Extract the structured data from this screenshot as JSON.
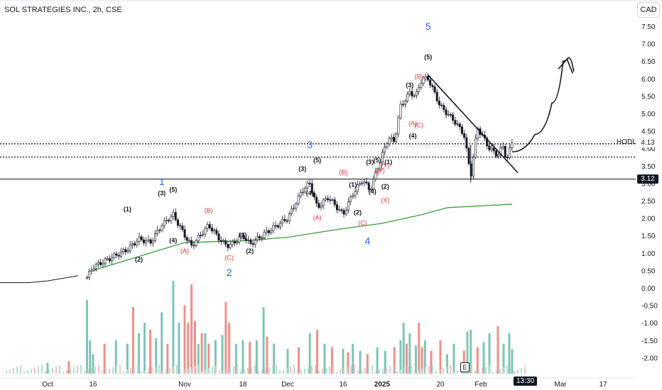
{
  "header": {
    "symbol": "SOL STRATEGIES INC., 2h, CSE",
    "currency_button": "CAD"
  },
  "overlay": {
    "hodl_label": "HODL",
    "hodl_price": "4.13",
    "support_price": "3.12",
    "earnings_badge": "E",
    "time_tag": "13:30"
  },
  "y_axis": {
    "ticks": [
      "7.50",
      "7.00",
      "6.50",
      "6.00",
      "5.50",
      "5.00",
      "4.50",
      "4.00",
      "3.50",
      "3.00",
      "2.50",
      "2.00",
      "1.50",
      "1.00",
      "0.50",
      "0.00",
      "-0.50",
      "-1.00",
      "-1.50",
      "-2.00"
    ]
  },
  "x_axis": {
    "ticks": [
      "Oct",
      "16",
      "Nov",
      "18",
      "Dec",
      "16",
      "2025",
      "20",
      "Feb",
      "Mar",
      "17"
    ]
  },
  "colors": {
    "up_volume": "#7fc4b6",
    "down_volume": "#ef8f8a",
    "ma_line": "#3c9c3c",
    "wave_main": "#2962ff",
    "wave_corr": "#e0363a",
    "candle": "#131722"
  },
  "chart_data": {
    "type": "candlestick",
    "title": "SOL STRATEGIES INC., 2h, CSE",
    "currency": "CAD",
    "ylim": [
      -2.25,
      7.75
    ],
    "price_path": [
      [
        "Oct 1",
        -0.15
      ],
      [
        "Oct 8",
        -0.1
      ],
      [
        "Oct 14",
        0.3
      ],
      [
        "Oct 16",
        0.6
      ],
      [
        "Oct 22",
        1.1
      ],
      [
        "Oct 24",
        1.4
      ],
      [
        "Oct 26",
        1.3
      ],
      [
        "Oct 28",
        1.8
      ],
      [
        "Oct 30",
        2.1
      ],
      [
        "Nov 1",
        1.5
      ],
      [
        "Nov 3",
        1.2
      ],
      [
        "Nov 8",
        1.8
      ],
      [
        "Nov 12",
        1.3
      ],
      [
        "Nov 14",
        1.2
      ],
      [
        "Nov 18",
        1.5
      ],
      [
        "Nov 20",
        1.25
      ],
      [
        "Nov 25",
        1.6
      ],
      [
        "Dec 1",
        2.0
      ],
      [
        "Dec 5",
        2.8
      ],
      [
        "Dec 7",
        3.0
      ],
      [
        "Dec 9",
        2.3
      ],
      [
        "Dec 12",
        2.6
      ],
      [
        "Dec 16",
        2.1
      ],
      [
        "Dec 20",
        2.7
      ],
      [
        "Dec 24",
        3.1
      ],
      [
        "Dec 27",
        2.8
      ],
      [
        "Dec 30",
        3.4
      ],
      [
        "Jan 3",
        4.3
      ],
      [
        "Jan 5",
        4.2
      ],
      [
        "Jan 7",
        5.2
      ],
      [
        "Jan 10",
        5.6
      ],
      [
        "Jan 12",
        5.5
      ],
      [
        "Jan 14",
        6.0
      ],
      [
        "Jan 16",
        6.0
      ],
      [
        "Jan 20",
        5.2
      ],
      [
        "Jan 24",
        4.8
      ],
      [
        "Jan 27",
        4.4
      ],
      [
        "Jan 29",
        3.2
      ],
      [
        "Jan 31",
        4.6
      ],
      [
        "Feb 4",
        4.0
      ],
      [
        "Feb 7",
        3.8
      ],
      [
        "Feb 9",
        4.1
      ],
      [
        "Feb 10",
        3.6
      ],
      [
        "Feb 12",
        4.2
      ]
    ],
    "moving_average": [
      [
        "Oct 16",
        0.5
      ],
      [
        "Oct 26",
        1.0
      ],
      [
        "Nov 1",
        1.3
      ],
      [
        "Nov 18",
        1.35
      ],
      [
        "Dec 1",
        1.45
      ],
      [
        "Dec 16",
        1.7
      ],
      [
        "Jan 1",
        1.85
      ],
      [
        "Jan 14",
        2.1
      ],
      [
        "Jan 22",
        2.3
      ],
      [
        "Feb 1",
        2.35
      ],
      [
        "Feb 12",
        2.4
      ]
    ],
    "horizontal_levels": [
      {
        "price": 3.12,
        "style": "solid"
      },
      {
        "price": 3.75,
        "style": "dotted"
      },
      {
        "price": 4.13,
        "style": "dotted",
        "label": "HODL"
      }
    ],
    "trendline": [
      [
        "Jan 16",
        6.1
      ],
      [
        "Feb 14",
        3.3
      ]
    ],
    "projection_path": [
      [
        "Feb 12",
        3.9
      ],
      [
        "Feb 20",
        4.4
      ],
      [
        "Feb 26",
        5.3
      ],
      [
        "Mar 2",
        6.5
      ],
      [
        "Mar 4",
        6.6
      ],
      [
        "Mar 6",
        6.2
      ]
    ],
    "wave_labels_main": [
      {
        "text": "1",
        "x": "Oct 28",
        "y": 2.95
      },
      {
        "text": "2",
        "x": "Nov 14",
        "y": 0.35
      },
      {
        "text": "3",
        "x": "Dec 7",
        "y": 4.0
      },
      {
        "text": "4",
        "x": "Dec 26",
        "y": 1.25
      },
      {
        "text": "5",
        "x": "Jan 16",
        "y": 7.4
      }
    ],
    "wave_labels_minor": [
      {
        "text": "(1)",
        "x": "Oct 22",
        "y": 2.2
      },
      {
        "text": "(2)",
        "x": "Oct 24",
        "y": 0.75
      },
      {
        "text": "(3)",
        "x": "Oct 28",
        "y": 2.65
      },
      {
        "text": "(4)",
        "x": "Oct 30",
        "y": 1.3
      },
      {
        "text": "(5)",
        "x": "Oct 30",
        "y": 2.75
      },
      {
        "text": "(1)",
        "x": "Nov 18",
        "y": 1.45
      },
      {
        "text": "(2)",
        "x": "Nov 20",
        "y": 1.0
      },
      {
        "text": "(3)",
        "x": "Dec 5",
        "y": 3.35
      },
      {
        "text": "(4)",
        "x": "Dec 7",
        "y": 2.65
      },
      {
        "text": "(5)",
        "x": "Dec 9",
        "y": 3.6
      },
      {
        "text": "(1)",
        "x": "Dec 20",
        "y": 2.9
      },
      {
        "text": "(2)",
        "x": "Dec 22",
        "y": 2.1
      },
      {
        "text": "(3)",
        "x": "Dec 27",
        "y": 3.55
      },
      {
        "text": "(4)",
        "x": "Dec 28",
        "y": 2.7
      },
      {
        "text": "(5)",
        "x": "Dec 30",
        "y": 3.6
      },
      {
        "text": "(1)",
        "x": "Jan 3",
        "y": 3.55
      },
      {
        "text": "(2)",
        "x": "Jan 2",
        "y": 2.85
      },
      {
        "text": "(3)",
        "x": "Jan 10",
        "y": 5.75
      },
      {
        "text": "(4)",
        "x": "Jan 11",
        "y": 4.3
      },
      {
        "text": "(5)",
        "x": "Jan 16",
        "y": 6.55
      }
    ],
    "wave_labels_corrective": [
      {
        "text": "(A)",
        "x": "Nov 1",
        "y": 1.0
      },
      {
        "text": "(B)",
        "x": "Nov 8",
        "y": 2.15
      },
      {
        "text": "(C)",
        "x": "Nov 14",
        "y": 0.8
      },
      {
        "text": "(A)",
        "x": "Dec 9",
        "y": 1.95
      },
      {
        "text": "(B)",
        "x": "Dec 16",
        "y": 3.25
      },
      {
        "text": "(C)",
        "x": "Dec 24",
        "y": 1.8
      },
      {
        "text": "(W)",
        "x": "Dec 31",
        "y": 3.3
      },
      {
        "text": "(X)",
        "x": "Jan 2",
        "y": 2.45
      },
      {
        "text": "(Y)",
        "x": "Jan 2",
        "y": 3.45
      },
      {
        "text": "(B)",
        "x": "Jan 13",
        "y": 6.0
      },
      {
        "text": "(A)",
        "x": "Jan 11",
        "y": 4.65
      },
      {
        "text": "(C)",
        "x": "Jan 13",
        "y": 4.6
      }
    ],
    "volume_scale": [
      -2.25,
      0.25
    ],
    "volume": [
      {
        "x": "Oct 1",
        "v": -2.15,
        "dir": "up"
      },
      {
        "x": "Oct 8",
        "v": -2.1,
        "dir": "down"
      },
      {
        "x": "Oct 14",
        "v": -0.35,
        "dir": "up"
      },
      {
        "x": "Oct 15",
        "v": -1.5,
        "dir": "up"
      },
      {
        "x": "Oct 16",
        "v": -1.9,
        "dir": "up"
      },
      {
        "x": "Oct 18",
        "v": -1.6,
        "dir": "down"
      },
      {
        "x": "Oct 20",
        "v": -1.5,
        "dir": "up"
      },
      {
        "x": "Oct 22",
        "v": -1.6,
        "dir": "up"
      },
      {
        "x": "Oct 23",
        "v": -0.55,
        "dir": "down"
      },
      {
        "x": "Oct 24",
        "v": -1.3,
        "dir": "up"
      },
      {
        "x": "Oct 25",
        "v": -1.0,
        "dir": "up"
      },
      {
        "x": "Oct 26",
        "v": -1.2,
        "dir": "down"
      },
      {
        "x": "Oct 27",
        "v": -1.45,
        "dir": "up"
      },
      {
        "x": "Oct 28",
        "v": -0.7,
        "dir": "up"
      },
      {
        "x": "Oct 29",
        "v": -1.6,
        "dir": "down"
      },
      {
        "x": "Oct 30",
        "v": 0.2,
        "dir": "up"
      },
      {
        "x": "Oct 31",
        "v": -1.0,
        "dir": "up"
      },
      {
        "x": "Nov 1",
        "v": -0.5,
        "dir": "down"
      },
      {
        "x": "Nov 2",
        "v": -1.0,
        "dir": "down"
      },
      {
        "x": "Nov 3",
        "v": 0.1,
        "dir": "down"
      },
      {
        "x": "Nov 4",
        "v": -0.95,
        "dir": "down"
      },
      {
        "x": "Nov 5",
        "v": -1.6,
        "dir": "up"
      },
      {
        "x": "Nov 6",
        "v": -1.3,
        "dir": "down"
      },
      {
        "x": "Nov 7",
        "v": -1.3,
        "dir": "up"
      },
      {
        "x": "Nov 8",
        "v": -1.6,
        "dir": "down"
      },
      {
        "x": "Nov 10",
        "v": -1.5,
        "dir": "up"
      },
      {
        "x": "Nov 12",
        "v": -1.35,
        "dir": "up"
      },
      {
        "x": "Nov 13",
        "v": -0.4,
        "dir": "down"
      },
      {
        "x": "Nov 14",
        "v": -1.0,
        "dir": "down"
      },
      {
        "x": "Nov 16",
        "v": -1.6,
        "dir": "up"
      },
      {
        "x": "Nov 18",
        "v": -1.5,
        "dir": "up"
      },
      {
        "x": "Nov 20",
        "v": -1.55,
        "dir": "down"
      },
      {
        "x": "Nov 22",
        "v": -1.5,
        "dir": "up"
      },
      {
        "x": "Nov 24",
        "v": -0.55,
        "dir": "up"
      },
      {
        "x": "Nov 25",
        "v": -1.4,
        "dir": "down"
      },
      {
        "x": "Nov 27",
        "v": -1.6,
        "dir": "up"
      },
      {
        "x": "Dec 1",
        "v": -1.75,
        "dir": "up"
      },
      {
        "x": "Dec 4",
        "v": -1.7,
        "dir": "down"
      },
      {
        "x": "Dec 7",
        "v": -1.3,
        "dir": "up"
      },
      {
        "x": "Dec 9",
        "v": -1.2,
        "dir": "down"
      },
      {
        "x": "Dec 11",
        "v": -1.6,
        "dir": "up"
      },
      {
        "x": "Dec 13",
        "v": -1.7,
        "dir": "down"
      },
      {
        "x": "Dec 16",
        "v": -1.75,
        "dir": "up"
      },
      {
        "x": "Dec 18",
        "v": -1.85,
        "dir": "down"
      },
      {
        "x": "Dec 20",
        "v": -1.6,
        "dir": "up"
      },
      {
        "x": "Dec 23",
        "v": -1.8,
        "dir": "up"
      },
      {
        "x": "Dec 26",
        "v": -1.9,
        "dir": "down"
      },
      {
        "x": "Dec 30",
        "v": -1.7,
        "dir": "up"
      },
      {
        "x": "Jan 2",
        "v": -1.8,
        "dir": "up"
      },
      {
        "x": "Jan 5",
        "v": -1.7,
        "dir": "down"
      },
      {
        "x": "Jan 7",
        "v": -1.5,
        "dir": "up"
      },
      {
        "x": "Jan 8",
        "v": -1.0,
        "dir": "up"
      },
      {
        "x": "Jan 9",
        "v": -1.6,
        "dir": "down"
      },
      {
        "x": "Jan 10",
        "v": -1.3,
        "dir": "up"
      },
      {
        "x": "Jan 12",
        "v": -1.65,
        "dir": "up"
      },
      {
        "x": "Jan 13",
        "v": -1.0,
        "dir": "down"
      },
      {
        "x": "Jan 14",
        "v": -1.7,
        "dir": "down"
      },
      {
        "x": "Jan 15",
        "v": -1.5,
        "dir": "up"
      },
      {
        "x": "Jan 17",
        "v": -1.8,
        "dir": "down"
      },
      {
        "x": "Jan 20",
        "v": -1.5,
        "dir": "down"
      },
      {
        "x": "Jan 22",
        "v": -1.9,
        "dir": "up"
      },
      {
        "x": "Jan 24",
        "v": -1.6,
        "dir": "up"
      },
      {
        "x": "Jan 27",
        "v": -1.8,
        "dir": "down"
      },
      {
        "x": "Jan 28",
        "v": -1.25,
        "dir": "up"
      },
      {
        "x": "Jan 29",
        "v": -1.2,
        "dir": "up"
      },
      {
        "x": "Jan 31",
        "v": -1.7,
        "dir": "down"
      },
      {
        "x": "Feb 2",
        "v": -1.55,
        "dir": "up"
      },
      {
        "x": "Feb 4",
        "v": -1.3,
        "dir": "up"
      },
      {
        "x": "Feb 7",
        "v": -1.1,
        "dir": "down"
      },
      {
        "x": "Feb 9",
        "v": -1.6,
        "dir": "up"
      },
      {
        "x": "Feb 11",
        "v": -1.3,
        "dir": "up"
      },
      {
        "x": "Feb 12",
        "v": -1.75,
        "dir": "up"
      }
    ]
  }
}
